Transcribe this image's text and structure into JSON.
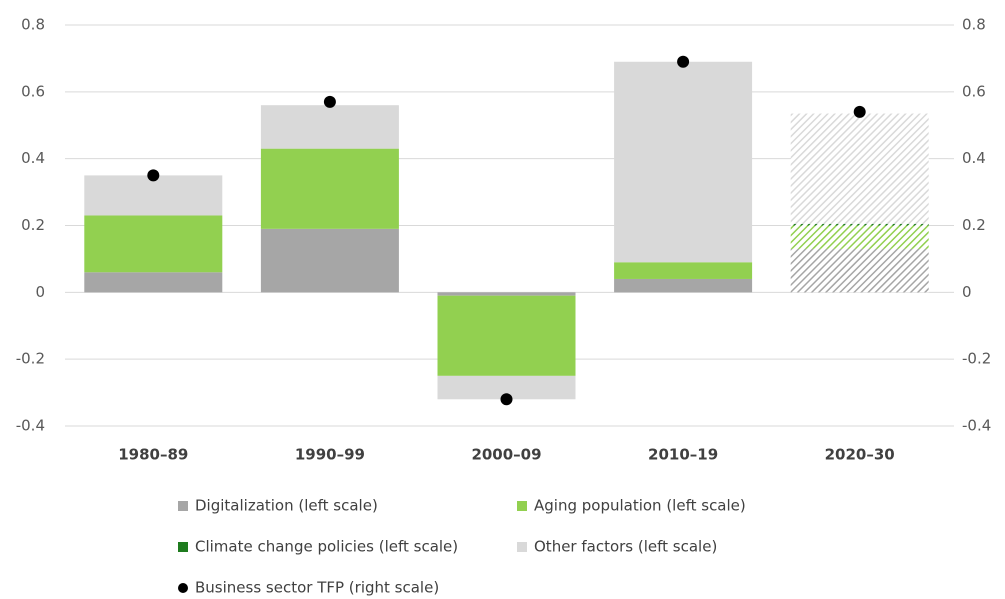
{
  "chart_data": {
    "type": "bar",
    "stacked": true,
    "categories": [
      "1980–89",
      "1990–99",
      "2000–09",
      "2010–19",
      "2020–30"
    ],
    "hatched": [
      false,
      false,
      false,
      false,
      true
    ],
    "series": [
      {
        "name": "Digitalization (left scale)",
        "color": "#a6a6a6",
        "values": [
          0.06,
          0.19,
          -0.01,
          0.04,
          0.13
        ]
      },
      {
        "name": "Aging population (left scale)",
        "color": "#92d050",
        "values": [
          0.17,
          0.24,
          -0.24,
          0.05,
          0.07
        ]
      },
      {
        "name": "Climate change policies (left scale)",
        "color": "#1e7b1e",
        "values": [
          0,
          0,
          0,
          0,
          0.005
        ]
      },
      {
        "name": "Other factors (left scale)",
        "color": "#d9d9d9",
        "values": [
          0.12,
          0.13,
          -0.07,
          0.6,
          0.33
        ]
      },
      {
        "name": "Business sector TFP (right scale)",
        "color": "#000000",
        "axis": "y2",
        "marker": "circle",
        "values": [
          0.35,
          0.57,
          -0.32,
          0.69,
          0.54
        ]
      }
    ],
    "ylim": [
      -0.4,
      0.8
    ],
    "yticks": [
      -0.4,
      -0.2,
      0,
      0.2,
      0.4,
      0.6,
      0.8
    ],
    "y2lim": [
      -0.4,
      0.8
    ],
    "y2ticks": [
      -0.4,
      -0.2,
      0,
      0.2,
      0.4,
      0.6,
      0.8
    ],
    "grid": true
  }
}
